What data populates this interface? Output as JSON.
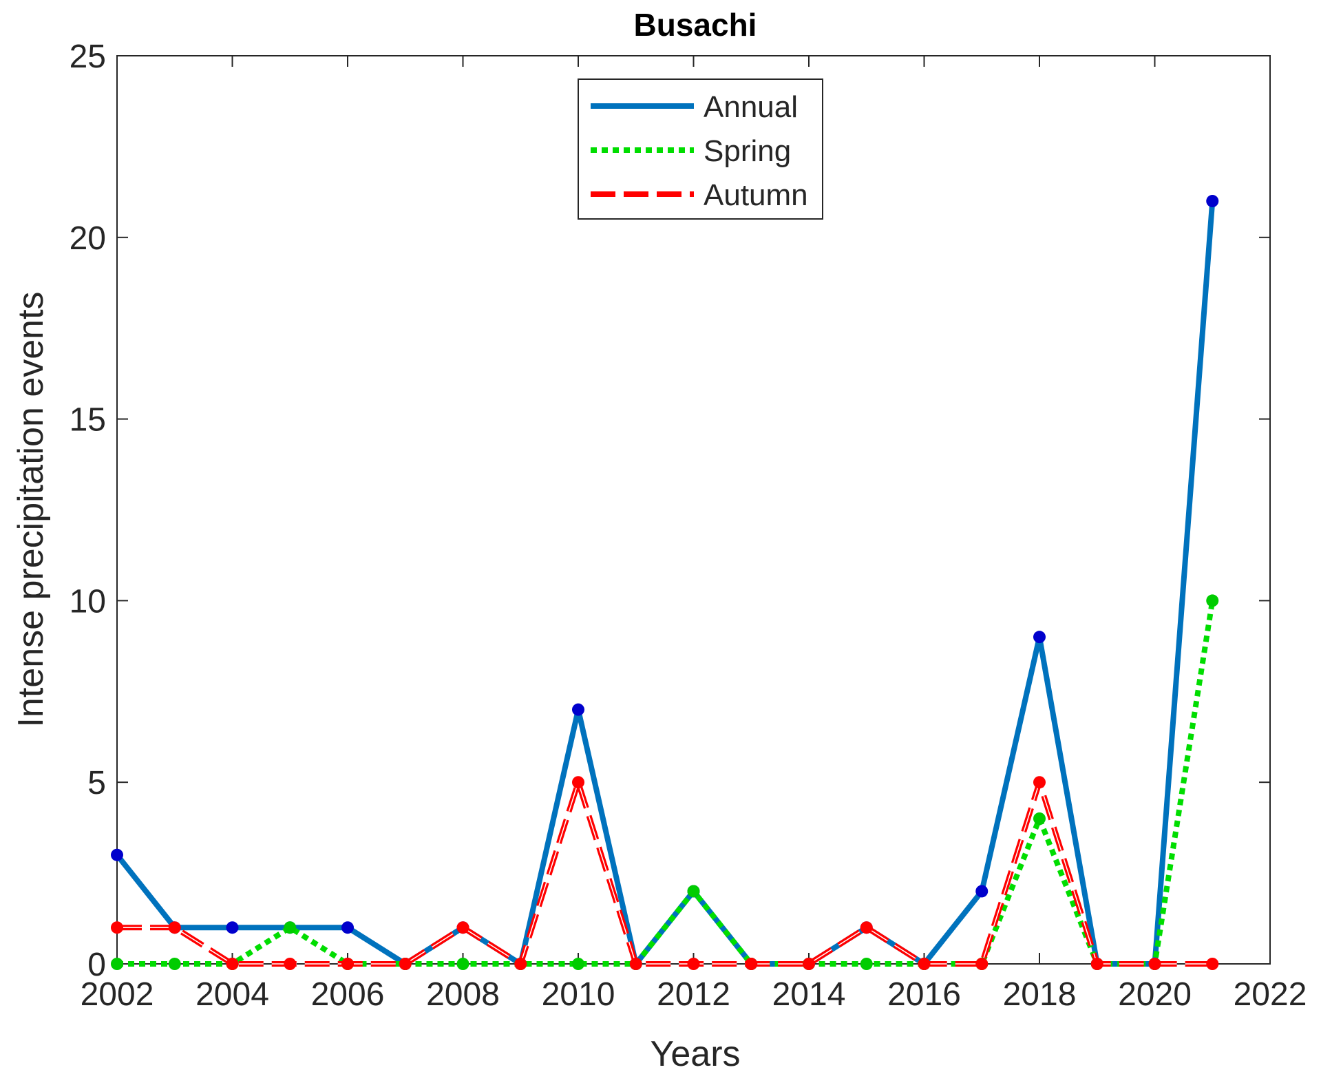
{
  "chart_data": {
    "type": "line",
    "title": "Busachi",
    "xlabel": "Years",
    "ylabel": "Intense precipitation events",
    "xlim": [
      2002,
      2022
    ],
    "ylim": [
      0,
      25
    ],
    "x_ticks": [
      2002,
      2004,
      2006,
      2008,
      2010,
      2012,
      2014,
      2016,
      2018,
      2020,
      2022
    ],
    "y_ticks": [
      0,
      5,
      10,
      15,
      20,
      25
    ],
    "grid": false,
    "legend_position": "top-center",
    "x": [
      2002,
      2003,
      2004,
      2005,
      2006,
      2007,
      2008,
      2009,
      2010,
      2011,
      2012,
      2013,
      2014,
      2015,
      2016,
      2017,
      2018,
      2019,
      2020,
      2021
    ],
    "series": [
      {
        "name": "Annual",
        "color": "#0072BD",
        "marker_color": "#0000CC",
        "line_style": "solid",
        "values": [
          3,
          1,
          1,
          1,
          1,
          0,
          1,
          0,
          7,
          0,
          2,
          0,
          0,
          1,
          0,
          2,
          9,
          0,
          0,
          21
        ]
      },
      {
        "name": "Spring",
        "color": "#00DD00",
        "marker_color": "#00CC00",
        "line_style": "dotted",
        "values": [
          0,
          0,
          0,
          1,
          0,
          0,
          0,
          0,
          0,
          0,
          2,
          0,
          0,
          0,
          0,
          0,
          4,
          0,
          0,
          10
        ]
      },
      {
        "name": "Autumn",
        "color": "#FF0000",
        "marker_color": "#FF0000",
        "line_style": "dashed",
        "values": [
          1,
          1,
          0,
          0,
          0,
          0,
          1,
          0,
          5,
          0,
          0,
          0,
          0,
          1,
          0,
          0,
          5,
          0,
          0,
          0
        ]
      }
    ]
  }
}
